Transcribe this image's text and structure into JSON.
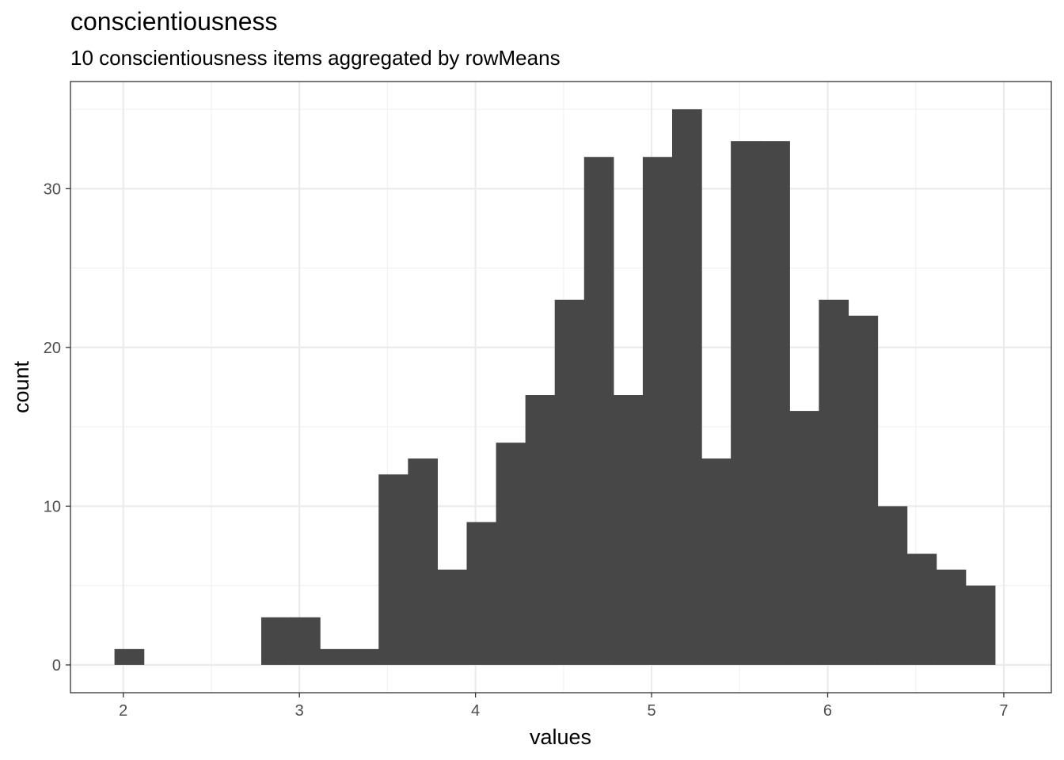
{
  "chart_data": {
    "type": "bar",
    "title": "conscientiousness",
    "subtitle": "10 conscientiousness items aggregated by rowMeans",
    "xlabel": "values",
    "ylabel": "count",
    "xlim": [
      1.7,
      7.27
    ],
    "ylim": [
      -1.75,
      36.75
    ],
    "x_ticks": [
      2,
      3,
      4,
      5,
      6,
      7
    ],
    "y_ticks": [
      0,
      10,
      20,
      30
    ],
    "grid": true,
    "bin_width": 0.1667,
    "bins": [
      {
        "center": 2.0333,
        "count": 1
      },
      {
        "center": 2.8667,
        "count": 3
      },
      {
        "center": 3.0333,
        "count": 3
      },
      {
        "center": 3.2,
        "count": 1
      },
      {
        "center": 3.3667,
        "count": 1
      },
      {
        "center": 3.5333,
        "count": 12
      },
      {
        "center": 3.7,
        "count": 13
      },
      {
        "center": 3.8667,
        "count": 6
      },
      {
        "center": 4.0333,
        "count": 9
      },
      {
        "center": 4.2,
        "count": 14
      },
      {
        "center": 4.3667,
        "count": 17
      },
      {
        "center": 4.5333,
        "count": 23
      },
      {
        "center": 4.7,
        "count": 32
      },
      {
        "center": 4.8667,
        "count": 17
      },
      {
        "center": 5.0333,
        "count": 32
      },
      {
        "center": 5.2,
        "count": 35
      },
      {
        "center": 5.3667,
        "count": 13
      },
      {
        "center": 5.5333,
        "count": 33
      },
      {
        "center": 5.7,
        "count": 33
      },
      {
        "center": 5.8667,
        "count": 16
      },
      {
        "center": 6.0333,
        "count": 23
      },
      {
        "center": 6.2,
        "count": 22
      },
      {
        "center": 6.3667,
        "count": 10
      },
      {
        "center": 6.5333,
        "count": 7
      },
      {
        "center": 6.7,
        "count": 6
      },
      {
        "center": 6.8667,
        "count": 5
      }
    ],
    "colors": {
      "bar": "#474747",
      "major_grid": "#ebebeb",
      "minor_grid": "#f2f2f2",
      "panel_border": "#333333",
      "tick_text": "#4d4d4d"
    }
  }
}
